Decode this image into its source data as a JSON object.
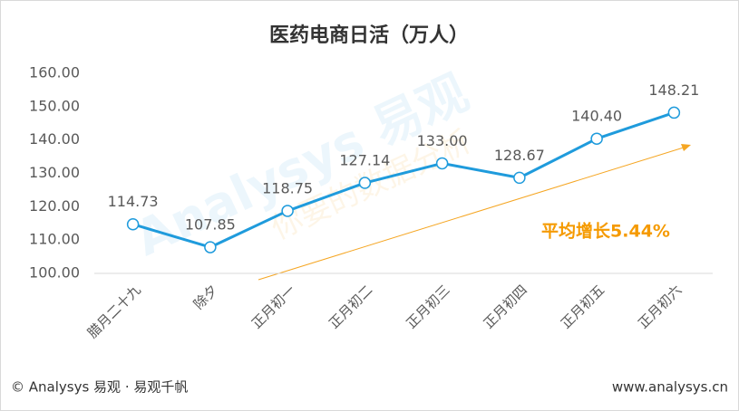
{
  "chart_data": {
    "type": "line",
    "title": "医药电商日活（万人）",
    "categories": [
      "腊月二十九",
      "除夕",
      "正月初一",
      "正月初二",
      "正月初三",
      "正月初四",
      "正月初五",
      "正月初六"
    ],
    "series": [
      {
        "name": "医药电商日活",
        "color": "#1f9bdc",
        "values": [
          114.73,
          107.85,
          118.75,
          127.14,
          133.0,
          128.67,
          140.4,
          148.21
        ],
        "value_labels": [
          "114.73",
          "107.85",
          "118.75",
          "127.14",
          "133.00",
          "128.67",
          "140.40",
          "148.21"
        ]
      }
    ],
    "ylim": [
      100,
      160
    ],
    "yticks": [
      {
        "value": 100,
        "label": "100.00"
      },
      {
        "value": 110,
        "label": "110.00"
      },
      {
        "value": 120,
        "label": "120.00"
      },
      {
        "value": 130,
        "label": "130.00"
      },
      {
        "value": 140,
        "label": "140.00"
      },
      {
        "value": 150,
        "label": "150.00"
      },
      {
        "value": 160,
        "label": "160.00"
      }
    ],
    "grid": false,
    "annotation": "平均增长5.44%",
    "watermark": [
      "Analysys 易观",
      "你要的数据分析"
    ],
    "footer_left": "© Analysys 易观 · 易观千帆",
    "footer_right": "www.analysys.cn"
  }
}
